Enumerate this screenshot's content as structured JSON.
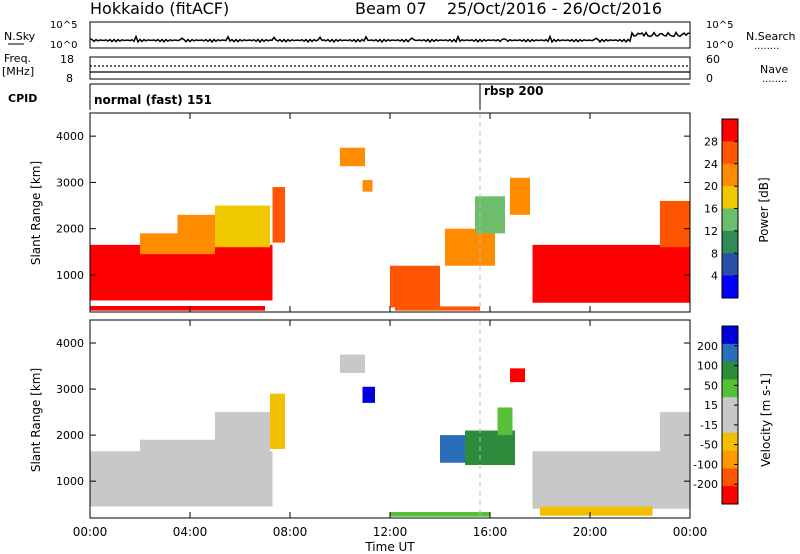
{
  "header": {
    "station": "Hokkaido (fitACF)",
    "beam": "Beam 07",
    "date_range": "25/Oct/2016 - 26/Oct/2016"
  },
  "labels": {
    "nsky_a": "N.Sky",
    "nsearch": "N.Search",
    "freq_a": "Freq.",
    "freq_b": "[MHz]",
    "nave": "Nave",
    "cpid": "CPID",
    "ten_pow_5": "10^5",
    "ten_pow_0": "10^0",
    "dots": "........"
  },
  "cpid_segments": [
    {
      "label": "normal (fast) 151",
      "start_hour": 0
    },
    {
      "label": "rbsp 200",
      "start_hour": 15.6
    }
  ],
  "freq_panel": {
    "left_ticks": [
      "18",
      "8"
    ],
    "right_ticks": [
      "60",
      "0"
    ]
  },
  "colors": {
    "power": [
      "#0000ff",
      "#2a4fa8",
      "#2f8b57",
      "#6cbe6c",
      "#f0c800",
      "#ff8c00",
      "#ff5500",
      "#ff0000"
    ],
    "velocity": [
      "#ff0000",
      "#ff5500",
      "#ff9900",
      "#f0c000",
      "#c8c8c8",
      "#c8c8c8",
      "#55c038",
      "#2d8b3c",
      "#2a6db8",
      "#0000dd"
    ]
  },
  "chart_data": [
    {
      "type": "heatmap",
      "name": "power",
      "xlabel": "",
      "ylabel": "Slant Range [km]",
      "ylim": [
        200,
        4500
      ],
      "yticks": [
        "4000",
        "3000",
        "2000",
        "1000"
      ],
      "colorbar_label": "Power [dB]",
      "colorbar_ticks": [
        "28",
        "24",
        "20",
        "16",
        "12",
        "8",
        "4"
      ],
      "regions": [
        {
          "t0": 0.0,
          "t1": 7.3,
          "r0": 450,
          "r1": 1650,
          "level": 7
        },
        {
          "t0": 0.0,
          "t1": 1.5,
          "r0": 600,
          "r1": 1500,
          "level": 7
        },
        {
          "t0": 2.0,
          "t1": 5.0,
          "r0": 1450,
          "r1": 1900,
          "level": 5
        },
        {
          "t0": 3.5,
          "t1": 5.8,
          "r0": 1700,
          "r1": 2300,
          "level": 5
        },
        {
          "t0": 5.0,
          "t1": 7.2,
          "r0": 1600,
          "r1": 2500,
          "level": 4
        },
        {
          "t0": 7.3,
          "t1": 7.8,
          "r0": 1700,
          "r1": 2900,
          "level": 6
        },
        {
          "t0": 10.0,
          "t1": 11.0,
          "r0": 3350,
          "r1": 3750,
          "level": 5
        },
        {
          "t0": 10.9,
          "t1": 11.3,
          "r0": 2800,
          "r1": 3050,
          "level": 5
        },
        {
          "t0": 12.0,
          "t1": 14.0,
          "r0": 300,
          "r1": 1200,
          "level": 6
        },
        {
          "t0": 14.2,
          "t1": 16.2,
          "r0": 1200,
          "r1": 2000,
          "level": 5
        },
        {
          "t0": 15.4,
          "t1": 16.6,
          "r0": 1900,
          "r1": 2700,
          "level": 3
        },
        {
          "t0": 16.8,
          "t1": 17.6,
          "r0": 2300,
          "r1": 3100,
          "level": 5
        },
        {
          "t0": 17.7,
          "t1": 24.0,
          "r0": 400,
          "r1": 1650,
          "level": 7
        },
        {
          "t0": 22.8,
          "t1": 24.0,
          "r0": 1600,
          "r1": 2600,
          "level": 6
        },
        {
          "t0": 0.0,
          "t1": 7.0,
          "r0": 230,
          "r1": 330,
          "level": 7
        },
        {
          "t0": 12.2,
          "t1": 15.6,
          "r0": 230,
          "r1": 320,
          "level": 6
        }
      ]
    },
    {
      "type": "heatmap",
      "name": "velocity",
      "xlabel": "Time UT",
      "ylabel": "Slant Range [km]",
      "ylim": [
        200,
        4500
      ],
      "yticks": [
        "4000",
        "3000",
        "2000",
        "1000"
      ],
      "xticks": [
        "00:00",
        "04:00",
        "08:00",
        "12:00",
        "16:00",
        "20:00",
        "00:00"
      ],
      "colorbar_label": "Velocity [m s-1]",
      "colorbar_ticks": [
        "200",
        "100",
        "50",
        "15",
        "-15",
        "-50",
        "-100",
        "-200"
      ],
      "regions": [
        {
          "t0": 0.0,
          "t1": 7.3,
          "r0": 450,
          "r1": 1650,
          "level": 4
        },
        {
          "t0": 2.0,
          "t1": 5.0,
          "r0": 1450,
          "r1": 1900,
          "level": 4
        },
        {
          "t0": 5.0,
          "t1": 7.2,
          "r0": 1600,
          "r1": 2500,
          "level": 4
        },
        {
          "t0": 7.2,
          "t1": 7.8,
          "r0": 1700,
          "r1": 2900,
          "level": 3
        },
        {
          "t0": 10.0,
          "t1": 11.0,
          "r0": 3350,
          "r1": 3750,
          "level": 4
        },
        {
          "t0": 10.9,
          "t1": 11.4,
          "r0": 2700,
          "r1": 3050,
          "level": 9
        },
        {
          "t0": 14.0,
          "t1": 15.5,
          "r0": 1400,
          "r1": 2000,
          "level": 8
        },
        {
          "t0": 15.0,
          "t1": 17.0,
          "r0": 1350,
          "r1": 2100,
          "level": 7
        },
        {
          "t0": 16.3,
          "t1": 16.9,
          "r0": 2000,
          "r1": 2600,
          "level": 6
        },
        {
          "t0": 16.8,
          "t1": 17.4,
          "r0": 3150,
          "r1": 3450,
          "level": 0
        },
        {
          "t0": 17.7,
          "t1": 24.0,
          "r0": 400,
          "r1": 1650,
          "level": 4
        },
        {
          "t0": 22.8,
          "t1": 24.0,
          "r0": 1600,
          "r1": 2500,
          "level": 4
        },
        {
          "t0": 18.0,
          "t1": 22.5,
          "r0": 250,
          "r1": 450,
          "level": 3
        },
        {
          "t0": 12.0,
          "t1": 16.0,
          "r0": 230,
          "r1": 330,
          "level": 6
        }
      ]
    }
  ]
}
